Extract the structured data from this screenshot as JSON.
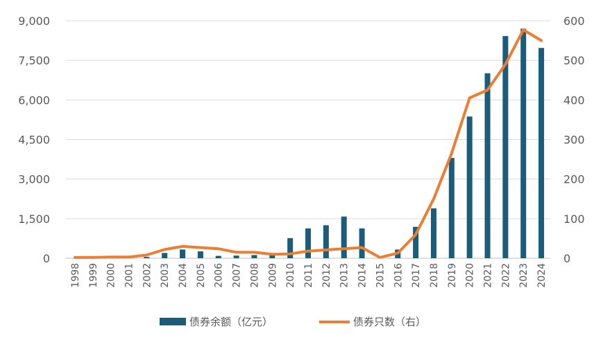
{
  "chart_data": {
    "type": "bar",
    "categories": [
      "1998",
      "1999",
      "2000",
      "2001",
      "2002",
      "2003",
      "2004",
      "2005",
      "2006",
      "2007",
      "2008",
      "2009",
      "2010",
      "2011",
      "2012",
      "2013",
      "2014",
      "2015",
      "2016",
      "2017",
      "2018",
      "2019",
      "2020",
      "2021",
      "2022",
      "2023",
      "2024"
    ],
    "series": [
      {
        "name": "债券余额（亿元）",
        "type": "bar",
        "axis": "left",
        "color": "#1a5c7a",
        "values": [
          0,
          0,
          0,
          5,
          50,
          200,
          330,
          260,
          90,
          100,
          120,
          190,
          760,
          1130,
          1250,
          1580,
          1130,
          0,
          330,
          1190,
          1890,
          3800,
          5370,
          7010,
          8420,
          8700,
          7970
        ]
      },
      {
        "name": "债券只数（右）",
        "type": "line",
        "axis": "right",
        "color": "#ed7d31",
        "values": [
          2,
          2,
          3,
          3,
          8,
          22,
          30,
          27,
          24,
          15,
          15,
          10,
          11,
          18,
          21,
          24,
          27,
          2,
          13,
          60,
          150,
          265,
          405,
          425,
          490,
          577,
          550
        ]
      }
    ],
    "y_left": {
      "ylim": [
        0,
        9000
      ],
      "ticks": [
        "0",
        "1,500",
        "3,000",
        "4,500",
        "6,000",
        "7,500",
        "9,000"
      ]
    },
    "y_right": {
      "ylim": [
        0,
        600
      ],
      "ticks": [
        "0",
        "100",
        "200",
        "300",
        "400",
        "500",
        "600"
      ]
    },
    "grid": true,
    "legend_position": "bottom"
  }
}
